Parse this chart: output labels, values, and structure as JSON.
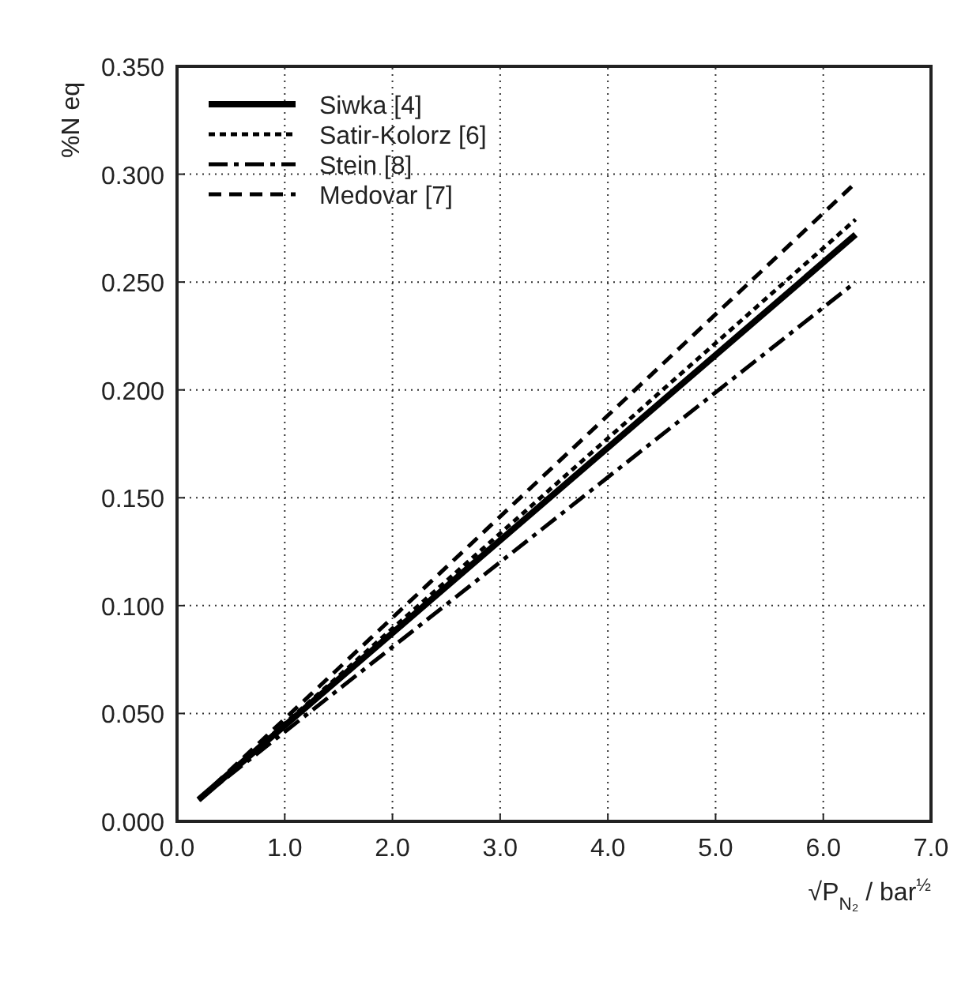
{
  "chart_data": {
    "type": "line",
    "xlabel": "√P$_{N₂}$ / bar$^{½}$",
    "ylabel": "%N eq",
    "xlim": [
      0,
      7
    ],
    "ylim": [
      0,
      0.35
    ],
    "xticks": [
      {
        "value": 0,
        "label": "0.0"
      },
      {
        "value": 1,
        "label": "1.0"
      },
      {
        "value": 2,
        "label": "2.0"
      },
      {
        "value": 3,
        "label": "3.0"
      },
      {
        "value": 4,
        "label": "4.0"
      },
      {
        "value": 5,
        "label": "5.0"
      },
      {
        "value": 6,
        "label": "6.0"
      },
      {
        "value": 7,
        "label": "7.0"
      }
    ],
    "yticks": [
      {
        "value": 0,
        "label": "0.000"
      },
      {
        "value": 0.05,
        "label": "0.050"
      },
      {
        "value": 0.1,
        "label": "0.100"
      },
      {
        "value": 0.15,
        "label": "0.150"
      },
      {
        "value": 0.2,
        "label": "0.200"
      },
      {
        "value": 0.25,
        "label": "0.250"
      },
      {
        "value": 0.3,
        "label": "0.300"
      },
      {
        "value": 0.35,
        "label": "0.350"
      }
    ],
    "x": [
      0.2,
      6.3
    ],
    "series": [
      {
        "name": "Siwka [4]",
        "color": "#000000",
        "line_style": "solid",
        "values": [
          0.01,
          0.272
        ]
      },
      {
        "name": "Satir-Kolorz [6]",
        "color": "#000000",
        "line_style": "dotted",
        "values": [
          0.01,
          0.279
        ]
      },
      {
        "name": "Stein [8]",
        "color": "#000000",
        "line_style": "dashdot",
        "values": [
          0.01,
          0.25
        ]
      },
      {
        "name": "Medovar [7]",
        "color": "#000000",
        "line_style": "dashed",
        "values": [
          0.01,
          0.296
        ]
      }
    ],
    "grid": true,
    "legend": "top left",
    "marker": "none"
  }
}
